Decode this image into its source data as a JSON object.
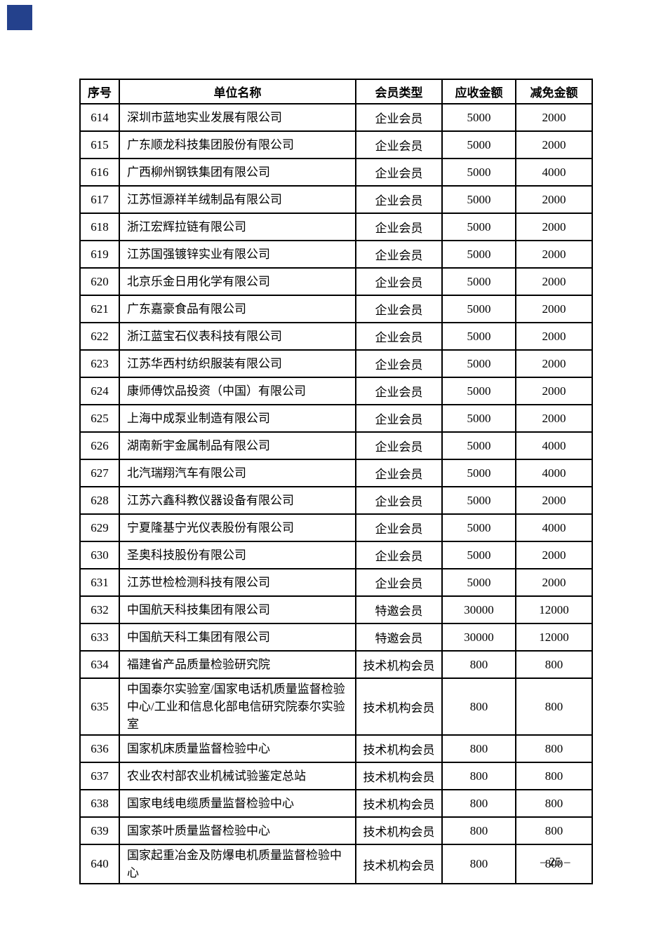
{
  "page": {
    "corner_mark_color": "#24418c",
    "page_number": "– 25 –"
  },
  "table": {
    "headers": {
      "no": "序号",
      "name": "单位名称",
      "type": "会员类型",
      "amount": "应收金额",
      "reduction": "减免金额"
    },
    "rows": [
      {
        "no": "614",
        "name": "深圳市蓝地实业发展有限公司",
        "type": "企业会员",
        "amount": "5000",
        "reduction": "2000"
      },
      {
        "no": "615",
        "name": "广东顺龙科技集团股份有限公司",
        "type": "企业会员",
        "amount": "5000",
        "reduction": "2000"
      },
      {
        "no": "616",
        "name": "广西柳州钢铁集团有限公司",
        "type": "企业会员",
        "amount": "5000",
        "reduction": "4000"
      },
      {
        "no": "617",
        "name": "江苏恒源祥羊绒制品有限公司",
        "type": "企业会员",
        "amount": "5000",
        "reduction": "2000"
      },
      {
        "no": "618",
        "name": "浙江宏辉拉链有限公司",
        "type": "企业会员",
        "amount": "5000",
        "reduction": "2000"
      },
      {
        "no": "619",
        "name": "江苏国强镀锌实业有限公司",
        "type": "企业会员",
        "amount": "5000",
        "reduction": "2000"
      },
      {
        "no": "620",
        "name": "北京乐金日用化学有限公司",
        "type": "企业会员",
        "amount": "5000",
        "reduction": "2000"
      },
      {
        "no": "621",
        "name": "广东嘉豪食品有限公司",
        "type": "企业会员",
        "amount": "5000",
        "reduction": "2000"
      },
      {
        "no": "622",
        "name": "浙江蓝宝石仪表科技有限公司",
        "type": "企业会员",
        "amount": "5000",
        "reduction": "2000"
      },
      {
        "no": "623",
        "name": "江苏华西村纺织服装有限公司",
        "type": "企业会员",
        "amount": "5000",
        "reduction": "2000"
      },
      {
        "no": "624",
        "name": "康师傅饮品投资（中国）有限公司",
        "type": "企业会员",
        "amount": "5000",
        "reduction": "2000"
      },
      {
        "no": "625",
        "name": "上海中成泵业制造有限公司",
        "type": "企业会员",
        "amount": "5000",
        "reduction": "2000"
      },
      {
        "no": "626",
        "name": "湖南新宇金属制品有限公司",
        "type": "企业会员",
        "amount": "5000",
        "reduction": "4000"
      },
      {
        "no": "627",
        "name": "北汽瑞翔汽车有限公司",
        "type": "企业会员",
        "amount": "5000",
        "reduction": "4000"
      },
      {
        "no": "628",
        "name": "江苏六鑫科教仪器设备有限公司",
        "type": "企业会员",
        "amount": "5000",
        "reduction": "2000"
      },
      {
        "no": "629",
        "name": "宁夏隆基宁光仪表股份有限公司",
        "type": "企业会员",
        "amount": "5000",
        "reduction": "4000"
      },
      {
        "no": "630",
        "name": "圣奥科技股份有限公司",
        "type": "企业会员",
        "amount": "5000",
        "reduction": "2000"
      },
      {
        "no": "631",
        "name": "江苏世检检测科技有限公司",
        "type": "企业会员",
        "amount": "5000",
        "reduction": "2000"
      },
      {
        "no": "632",
        "name": "中国航天科技集团有限公司",
        "type": "特邀会员",
        "amount": "30000",
        "reduction": "12000"
      },
      {
        "no": "633",
        "name": "中国航天科工集团有限公司",
        "type": "特邀会员",
        "amount": "30000",
        "reduction": "12000"
      },
      {
        "no": "634",
        "name": "福建省产品质量检验研究院",
        "type": "技术机构会员",
        "amount": "800",
        "reduction": "800"
      },
      {
        "no": "635",
        "name": "中国泰尔实验室/国家电话机质量监督检验中心/工业和信息化部电信研究院泰尔实验室",
        "type": "技术机构会员",
        "amount": "800",
        "reduction": "800"
      },
      {
        "no": "636",
        "name": "国家机床质量监督检验中心",
        "type": "技术机构会员",
        "amount": "800",
        "reduction": "800"
      },
      {
        "no": "637",
        "name": "农业农村部农业机械试验鉴定总站",
        "type": "技术机构会员",
        "amount": "800",
        "reduction": "800"
      },
      {
        "no": "638",
        "name": "国家电线电缆质量监督检验中心",
        "type": "技术机构会员",
        "amount": "800",
        "reduction": "800"
      },
      {
        "no": "639",
        "name": "国家茶叶质量监督检验中心",
        "type": "技术机构会员",
        "amount": "800",
        "reduction": "800"
      },
      {
        "no": "640",
        "name": "国家起重冶金及防爆电机质量监督检验中心",
        "type": "技术机构会员",
        "amount": "800",
        "reduction": "800"
      }
    ]
  }
}
